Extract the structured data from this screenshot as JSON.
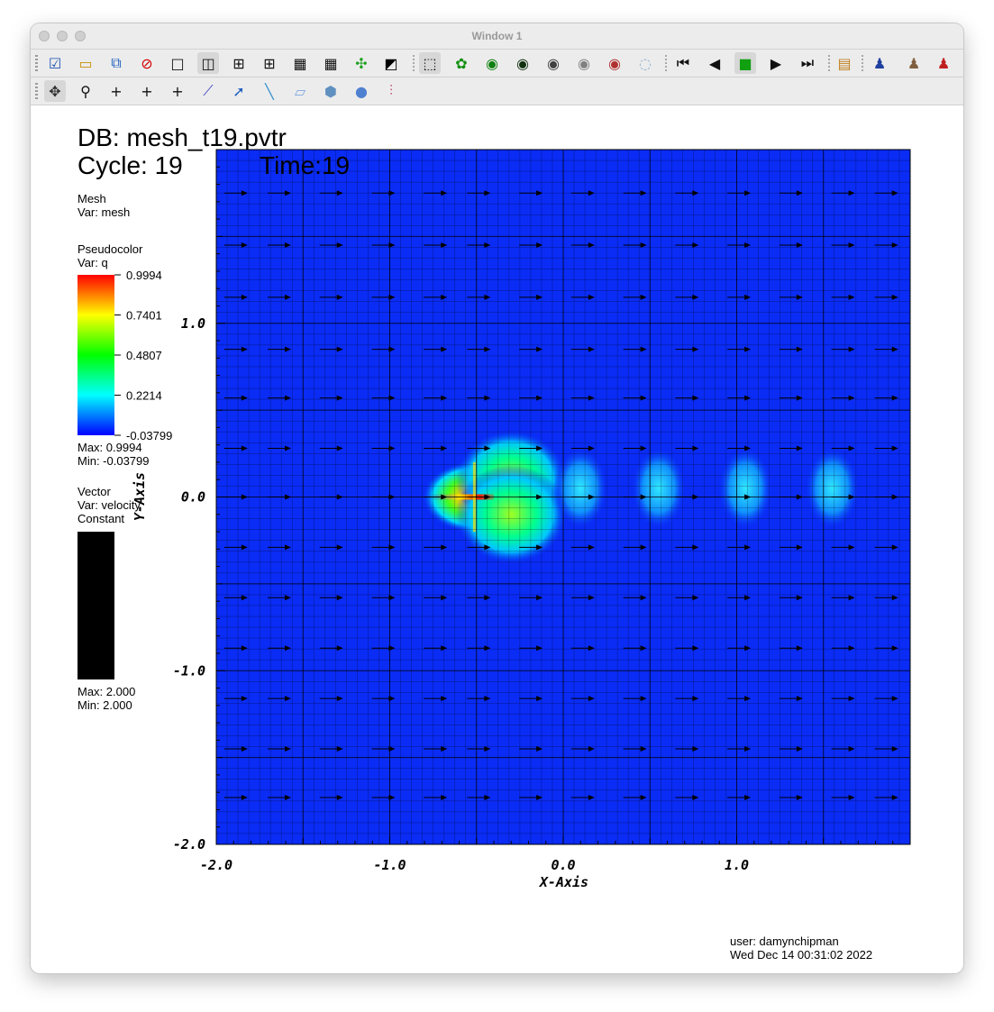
{
  "window": {
    "title": "Window 1"
  },
  "toolbar_top": {
    "buttons": [
      "active-window-icon",
      "new-window-icon",
      "clone-window-icon",
      "delete-window-icon",
      "layout-1x1-icon",
      "layout-1x2-icon",
      "layout-2x2-icon",
      "layout-2x3-icon",
      "layout-2x4-icon",
      "layout-3x3-icon",
      "lock-view-icon",
      "invert-background-icon",
      "3d-view-icon",
      "draw-plots-icon",
      "camera-icon",
      "save-image-icon",
      "copy-image-icon",
      "hide-plots-icon",
      "print-icon",
      "redraw-icon",
      "rewind-icon",
      "step-back-icon",
      "stop-icon",
      "play-icon",
      "step-forward-icon",
      "annotation-icon",
      "engine-1-icon",
      "engine-2-icon",
      "engine-3-icon"
    ]
  },
  "toolbar_bottom": {
    "buttons": [
      "navigate-icon",
      "zoom-icon",
      "zone-pick-icon",
      "node-pick-icon",
      "spreadsheet-pick-icon",
      "lineout-icon",
      "pick-tool-icon",
      "line-tool-icon",
      "plane-tool-icon",
      "box-tool-icon",
      "sphere-tool-icon",
      "point-tool-icon"
    ]
  },
  "annotations": {
    "db": "DB: mesh_t19.pvtr",
    "cycle": "Cycle: 19",
    "time": "Time:19",
    "user": "user: damynchipman",
    "date": "Wed Dec 14 00:31:02 2022"
  },
  "legends": {
    "mesh": {
      "title": "Mesh",
      "var": "Var: mesh"
    },
    "pseudocolor": {
      "title": "Pseudocolor",
      "var": "Var: q",
      "ticks": [
        "0.9994",
        "0.7401",
        "0.4807",
        "0.2214",
        "-0.03799"
      ],
      "max": "Max:  0.9994",
      "min": "Min:  -0.03799",
      "colors": [
        "#ff0000",
        "#ffff00",
        "#00ff00",
        "#00ffff",
        "#0000ff"
      ]
    },
    "vector": {
      "title": "Vector",
      "var": "Var: velocity",
      "mode": "Constant",
      "max": "Max:  2.000",
      "min": "Min:  2.000",
      "color": "#000000"
    }
  },
  "chart_data": {
    "type": "heatmap",
    "xlabel": "X-Axis",
    "ylabel": "Y-Axis",
    "xlim": [
      -2.0,
      2.0
    ],
    "ylim": [
      -2.0,
      2.0
    ],
    "x_ticks": [
      "-2.0",
      "-1.0",
      "0.0",
      "1.0"
    ],
    "x_tick_values": [
      -2.0,
      -1.0,
      0.0,
      1.0
    ],
    "y_ticks": [
      "1.0",
      "0.0",
      "-1.0",
      "-2.0"
    ],
    "y_tick_values": [
      1.0,
      0.0,
      -1.0,
      -2.0
    ],
    "background_color": "#0a2cf5",
    "blobs": [
      {
        "x": -0.5,
        "y": 0.0,
        "peak": 0.9994
      },
      {
        "x": -0.3,
        "y": 0.1,
        "peak": 0.75
      },
      {
        "x": -0.3,
        "y": -0.1,
        "peak": 0.75
      },
      {
        "x": 0.1,
        "y": 0.05,
        "peak": 0.25
      },
      {
        "x": 0.55,
        "y": 0.05,
        "peak": 0.2
      },
      {
        "x": 1.05,
        "y": 0.05,
        "peak": 0.18
      },
      {
        "x": 1.55,
        "y": 0.05,
        "peak": 0.12
      }
    ],
    "vector_rows_y": [
      1.75,
      1.45,
      1.15,
      0.85,
      0.57,
      0.28,
      0.0,
      -0.29,
      -0.58,
      -0.87,
      -1.16,
      -1.45,
      -1.73
    ],
    "vector_cols_x": [
      -1.85,
      -1.6,
      -1.3,
      -1.0,
      -0.7,
      -0.45,
      -0.15,
      0.15,
      0.45,
      0.75,
      1.05,
      1.35,
      1.65,
      1.9
    ]
  }
}
